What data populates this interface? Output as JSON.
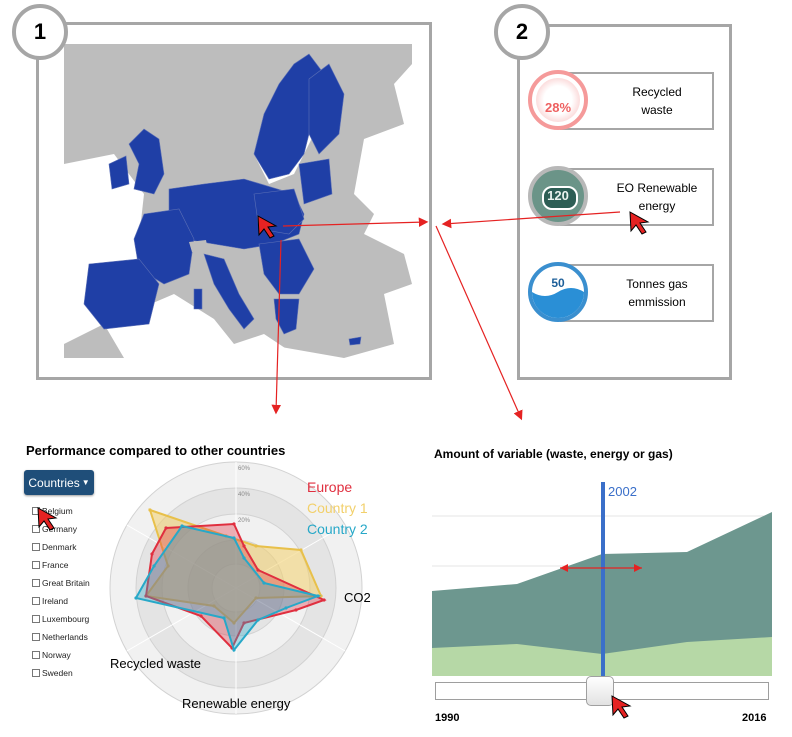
{
  "panel1": {
    "number": "1"
  },
  "panel2": {
    "number": "2"
  },
  "kpis": [
    {
      "value": "28%",
      "label": "Recycled\nwaste",
      "fill_fraction": 0.28
    },
    {
      "value": "120",
      "label": "EO Renewable\nenergy"
    },
    {
      "value": "50",
      "label": "Tonnes gas\nemmission",
      "fill_fraction": 0.5
    }
  ],
  "radar": {
    "title": "Performance compared to other countries",
    "button_label": "Countries",
    "countries": [
      "Belgium",
      "Germany",
      "Denmark",
      "France",
      "Great Britain",
      "Ireland",
      "Luxembourg",
      "Netherlands",
      "Norway",
      "Sweden"
    ],
    "axes": [
      "CO2",
      "Renewable energy",
      "Recycled waste"
    ],
    "scale_labels": [
      "60%",
      "40%",
      "20%"
    ],
    "legend": [
      "Europe",
      "Country 1",
      "Country 2"
    ],
    "colors": {
      "Europe": "#e02f3f",
      "Country 1": "#f2d06b",
      "Country 2": "#27a8c8"
    }
  },
  "area": {
    "title": "Amount of variable (waste, energy or gas)",
    "marker_year": "2002",
    "start_year": "1990",
    "end_year": "2016",
    "slider_position": 0.5
  },
  "chart_data": [
    {
      "type": "radar",
      "title": "Performance compared to other countries",
      "axes": [
        "CO2",
        "Renewable energy",
        "Recycled waste"
      ],
      "series": [
        {
          "name": "Europe"
        },
        {
          "name": "Country 1"
        },
        {
          "name": "Country 2"
        }
      ]
    },
    {
      "type": "area",
      "title": "Amount of variable (waste, energy or gas)",
      "x_range": [
        1990,
        2016
      ],
      "highlight_x": 2002
    }
  ]
}
